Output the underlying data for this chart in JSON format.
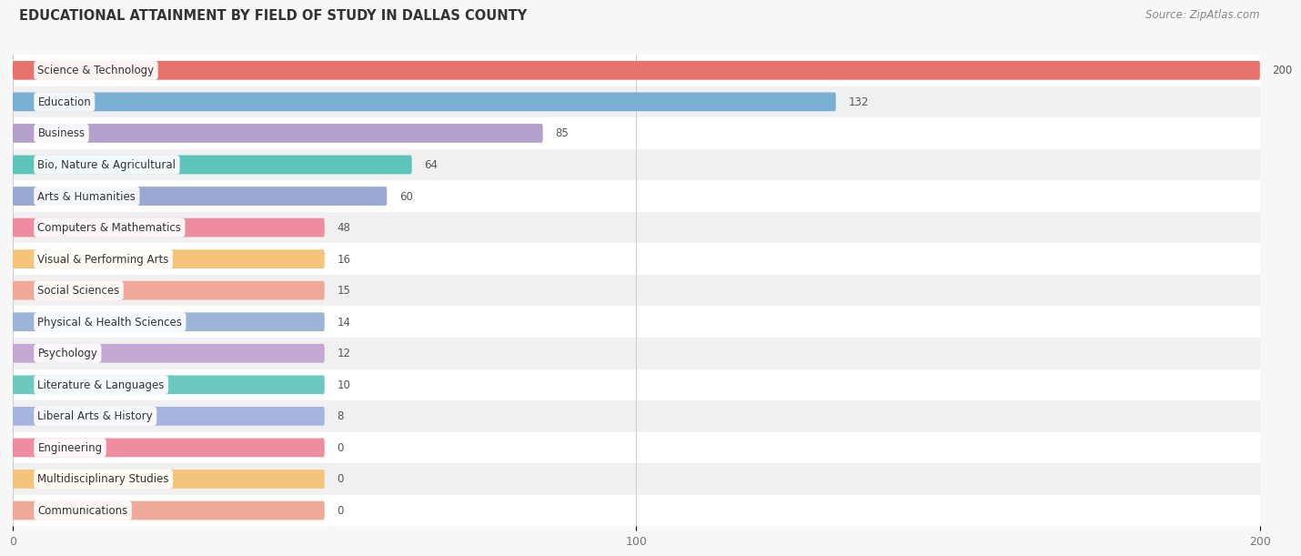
{
  "title": "EDUCATIONAL ATTAINMENT BY FIELD OF STUDY IN DALLAS COUNTY",
  "source": "Source: ZipAtlas.com",
  "categories": [
    "Science & Technology",
    "Education",
    "Business",
    "Bio, Nature & Agricultural",
    "Arts & Humanities",
    "Computers & Mathematics",
    "Visual & Performing Arts",
    "Social Sciences",
    "Physical & Health Sciences",
    "Psychology",
    "Literature & Languages",
    "Liberal Arts & History",
    "Engineering",
    "Multidisciplinary Studies",
    "Communications"
  ],
  "values": [
    200,
    132,
    85,
    64,
    60,
    48,
    16,
    15,
    14,
    12,
    10,
    8,
    0,
    0,
    0
  ],
  "bar_colors": [
    "#E8736C",
    "#7AAFD4",
    "#B59FCC",
    "#5DC5B8",
    "#9BA8D4",
    "#F08CA0",
    "#F5C47A",
    "#F0A898",
    "#9BB4D8",
    "#C4A8D4",
    "#6DC8C0",
    "#A8B4E0",
    "#F08CA0",
    "#F5C47A",
    "#F0A898"
  ],
  "xlim": [
    0,
    200
  ],
  "xticks": [
    0,
    100,
    200
  ],
  "background_color": "#f7f7f7",
  "row_bg_light": "#f0f0f0",
  "row_bg_dark": "#e8e8e8",
  "title_fontsize": 10.5,
  "source_fontsize": 8.5,
  "label_fontsize": 8.5,
  "value_fontsize": 8.5,
  "min_bar_width": 50
}
